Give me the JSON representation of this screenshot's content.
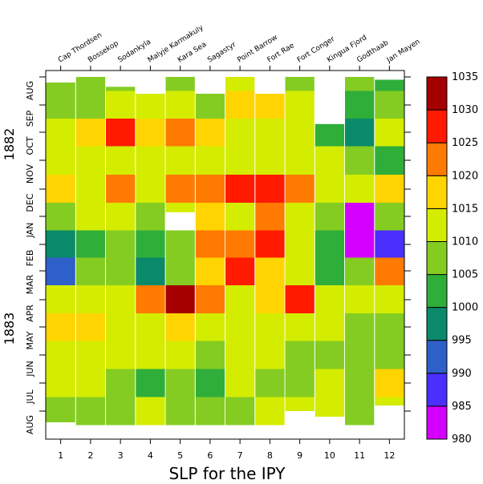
{
  "chart_data": {
    "type": "heatmap",
    "xlabel": "SLP for the IPY",
    "x_ticks": [
      "1",
      "2",
      "3",
      "4",
      "5",
      "6",
      "7",
      "8",
      "9",
      "10",
      "11",
      "12"
    ],
    "stations": [
      "Cap Thordsen",
      "Bossekop",
      "Sodankyla",
      "Malyje Karmakuly",
      "Kara Sea",
      "Sagastyr",
      "Point Barrow",
      "Fort Rae",
      "Fort Conger",
      "Kingua Fjord",
      "Godthaab",
      "Jan Mayen"
    ],
    "year_labels": [
      "1882",
      "1883"
    ],
    "month_labels": [
      "AUG",
      "SEP",
      "OCT",
      "NOV",
      "DEC",
      "JAN",
      "FEB",
      "MAR",
      "APR",
      "MAY",
      "JUN",
      "JUL",
      "AUG"
    ],
    "month_index": [
      0,
      1,
      2,
      3,
      4,
      5,
      6,
      7,
      8,
      9,
      10,
      11,
      12
    ],
    "colorbar": {
      "ticks": [
        "980",
        "985",
        "990",
        "995",
        "1000",
        "1005",
        "1010",
        "1015",
        "1020",
        "1025",
        "1030",
        "1035"
      ],
      "bands": [
        {
          "min": 980,
          "max": 985,
          "color": "#d400ff"
        },
        {
          "min": 985,
          "max": 990,
          "color": "#4a2fff"
        },
        {
          "min": 990,
          "max": 995,
          "color": "#2f5fc8"
        },
        {
          "min": 995,
          "max": 1000,
          "color": "#0a8a6a"
        },
        {
          "min": 1000,
          "max": 1005,
          "color": "#2fae3a"
        },
        {
          "min": 1005,
          "max": 1010,
          "color": "#84cc22"
        },
        {
          "min": 1010,
          "max": 1015,
          "color": "#d4ec00"
        },
        {
          "min": 1015,
          "max": 1020,
          "color": "#ffd400"
        },
        {
          "min": 1020,
          "max": 1025,
          "color": "#ff7a00"
        },
        {
          "min": 1025,
          "max": 1030,
          "color": "#ff1a00"
        },
        {
          "min": 1030,
          "max": 1035,
          "color": "#a50000"
        }
      ]
    },
    "coverage": [
      {
        "station": "Cap Thordsen",
        "start": 0.2,
        "end": 12.4
      },
      {
        "station": "Bossekop",
        "start": 0.0,
        "end": 12.7
      },
      {
        "station": "Sodankyla",
        "start": 0.35,
        "end": 12.7
      },
      {
        "station": "Malyje Karmakuly",
        "start": 0.6,
        "end": 12.55
      },
      {
        "station": "Kara Sea",
        "start": 0.0,
        "end": 12.55
      },
      {
        "station": "Sagastyr",
        "start": 0.6,
        "end": 12.7
      },
      {
        "station": "Point Barrow",
        "start": 0.0,
        "end": 12.65
      },
      {
        "station": "Fort Rae",
        "start": 0.6,
        "end": 12.7
      },
      {
        "station": "Fort Conger",
        "start": 0.0,
        "end": 12.0
      },
      {
        "station": "Kingua Fjord",
        "start": 1.7,
        "end": 12.2
      },
      {
        "station": "Godthaab",
        "start": 0.0,
        "end": 12.7
      },
      {
        "station": "Jan Mayen",
        "start": 0.1,
        "end": 11.8
      }
    ],
    "gaps": [
      {
        "station": "Kara Sea",
        "start": 4.85,
        "end": 5.5
      }
    ],
    "series": [
      {
        "name": "Cap Thordsen",
        "values": [
          1009,
          1006,
          1012,
          1014,
          1018,
          1008,
          999,
          993,
          1012,
          1016,
          1012,
          1012,
          1009
        ]
      },
      {
        "name": "Bossekop",
        "values": [
          1007,
          1010,
          1021,
          1012,
          1016,
          1010,
          1004,
          1010,
          1016,
          1014,
          1012,
          1012,
          1010
        ]
      },
      {
        "name": "Sodankyla",
        "values": [
          1008,
          1012,
          1026,
          1014,
          1022,
          1012,
          1010,
          1008,
          1014,
          1012,
          1012,
          1010,
          1010
        ]
      },
      {
        "name": "Malyje Karmakuly",
        "values": [
          1010,
          1012,
          1020,
          1013,
          1016,
          1004,
          1006,
          995,
          1022,
          1014,
          1012,
          1003,
          1010
        ]
      },
      {
        "name": "Kara Sea",
        "values": [
          1008,
          1015,
          1024,
          1014,
          1022,
          1012,
          1010,
          1008,
          1031,
          1016,
          1012,
          1006,
          1010
        ]
      },
      {
        "name": "Sagastyr",
        "values": [
          1006,
          1010,
          1018,
          1014,
          1025,
          1016,
          1022,
          1018,
          1022,
          1012,
          1006,
          1003,
          1008
        ]
      },
      {
        "name": "Point Barrow",
        "values": [
          1010,
          1015,
          1012,
          1014,
          1025,
          1015,
          1022,
          1026,
          1014,
          1012,
          1012,
          1010,
          1006
        ]
      },
      {
        "name": "Fort Rae",
        "values": [
          1010,
          1015,
          1012,
          1014,
          1026,
          1025,
          1028,
          1018,
          1018,
          1012,
          1010,
          1010,
          1012
        ]
      },
      {
        "name": "Fort Conger",
        "values": [
          1006,
          1010,
          1015,
          1013,
          1022,
          1014,
          1010,
          1012,
          1026,
          1014,
          1006,
          1010,
          1012
        ]
      },
      {
        "name": "Kingua Fjord",
        "values": [
          1012,
          1005,
          1003,
          1013,
          1014,
          1004,
          1000,
          1006,
          1015,
          1012,
          1006,
          1012,
          1012
        ]
      },
      {
        "name": "Godthaab",
        "values": [
          1008,
          1003,
          1000,
          1005,
          1012,
          986,
          983,
          1006,
          1012,
          1006,
          1010,
          1010,
          1010
        ]
      },
      {
        "name": "Jan Mayen",
        "values": [
          1006,
          1007,
          1012,
          1002,
          1018,
          1008,
          985,
          1022,
          1014,
          1006,
          1010,
          1014,
          1014
        ]
      }
    ]
  }
}
